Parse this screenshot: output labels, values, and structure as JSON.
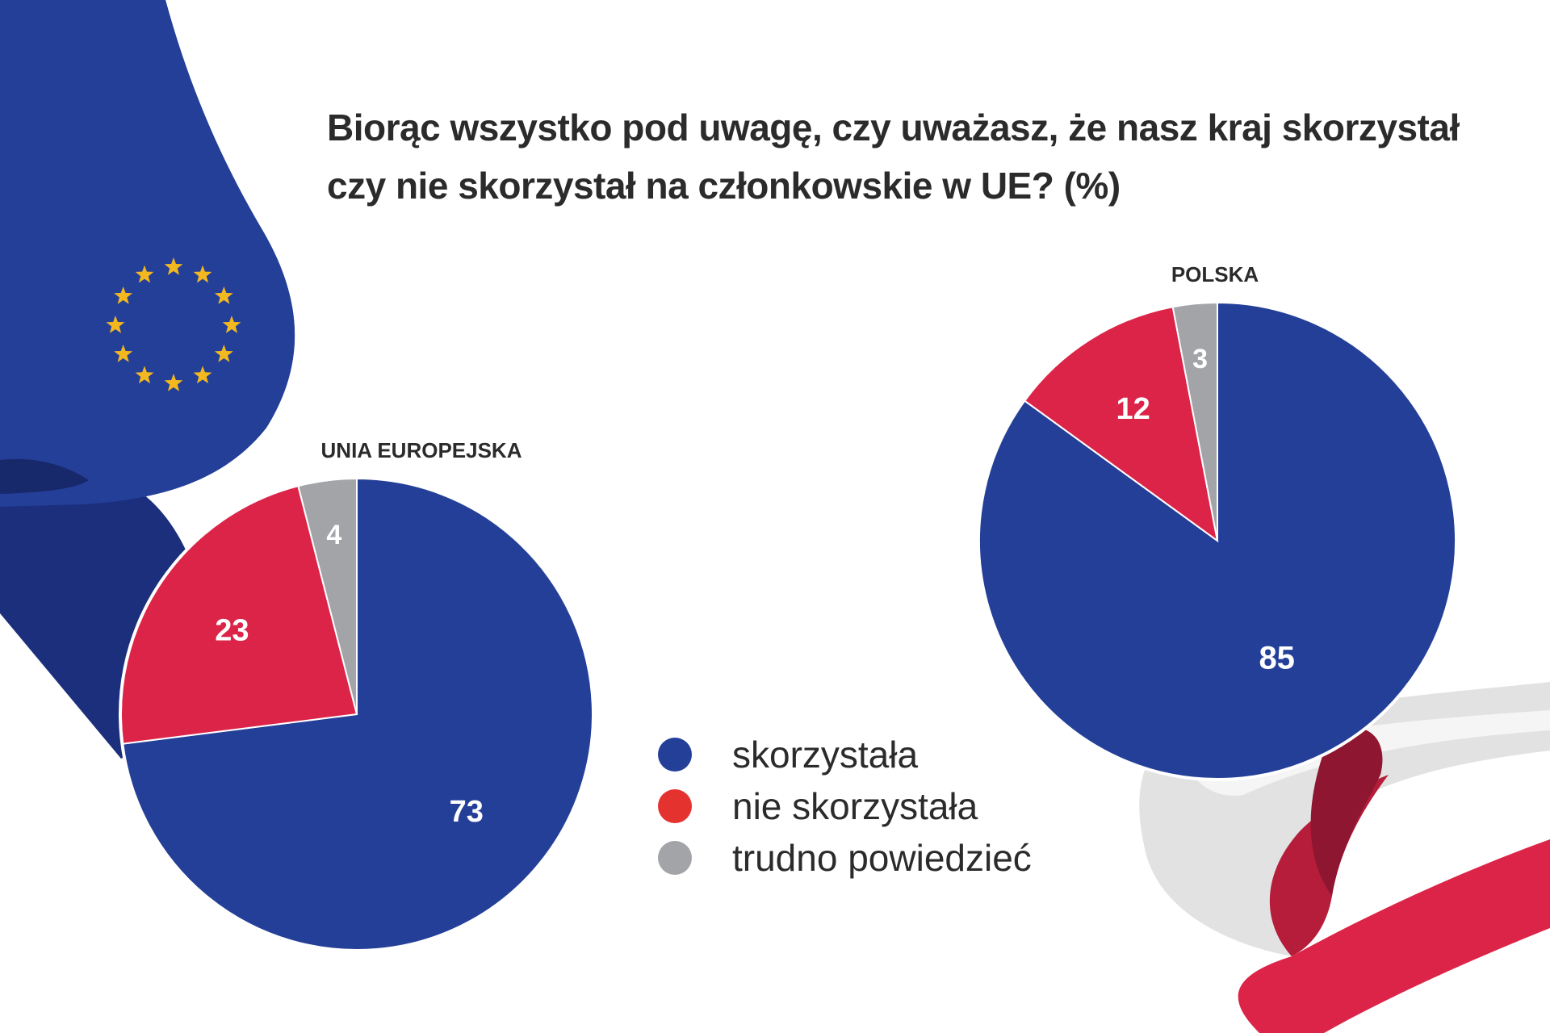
{
  "title_lines": [
    "Biorąc wszystko pod uwagę, czy uważasz, że nasz kraj skorzystał",
    "czy nie skorzystał na członkowskie w UE? (%)"
  ],
  "colors": {
    "skorzystala": "#243f98",
    "nie_skorzystala": "#dc2448",
    "trudno": "#a3a4a8",
    "legend_red": "#e4322f",
    "eu_blue": "#233c95",
    "eu_star": "#f3b81f"
  },
  "legend": [
    {
      "label": "skorzystała",
      "color": "#243f98"
    },
    {
      "label": "nie skorzystała",
      "color": "#e4322f"
    },
    {
      "label": "trudno powiedzieć",
      "color": "#a3a4a8"
    }
  ],
  "chart_data": [
    {
      "type": "pie",
      "title": "UNIA EUROPEJSKA",
      "categories": [
        "skorzystała",
        "nie skorzystała",
        "trudno powiedzieć"
      ],
      "values": [
        73,
        23,
        4
      ],
      "data_labels": [
        "73",
        "23",
        "4"
      ]
    },
    {
      "type": "pie",
      "title": "POLSKA",
      "categories": [
        "skorzystała",
        "nie skorzystała",
        "trudno powiedzieć"
      ],
      "values": [
        85,
        12,
        3
      ],
      "data_labels": [
        "85",
        "12",
        "3"
      ]
    }
  ]
}
